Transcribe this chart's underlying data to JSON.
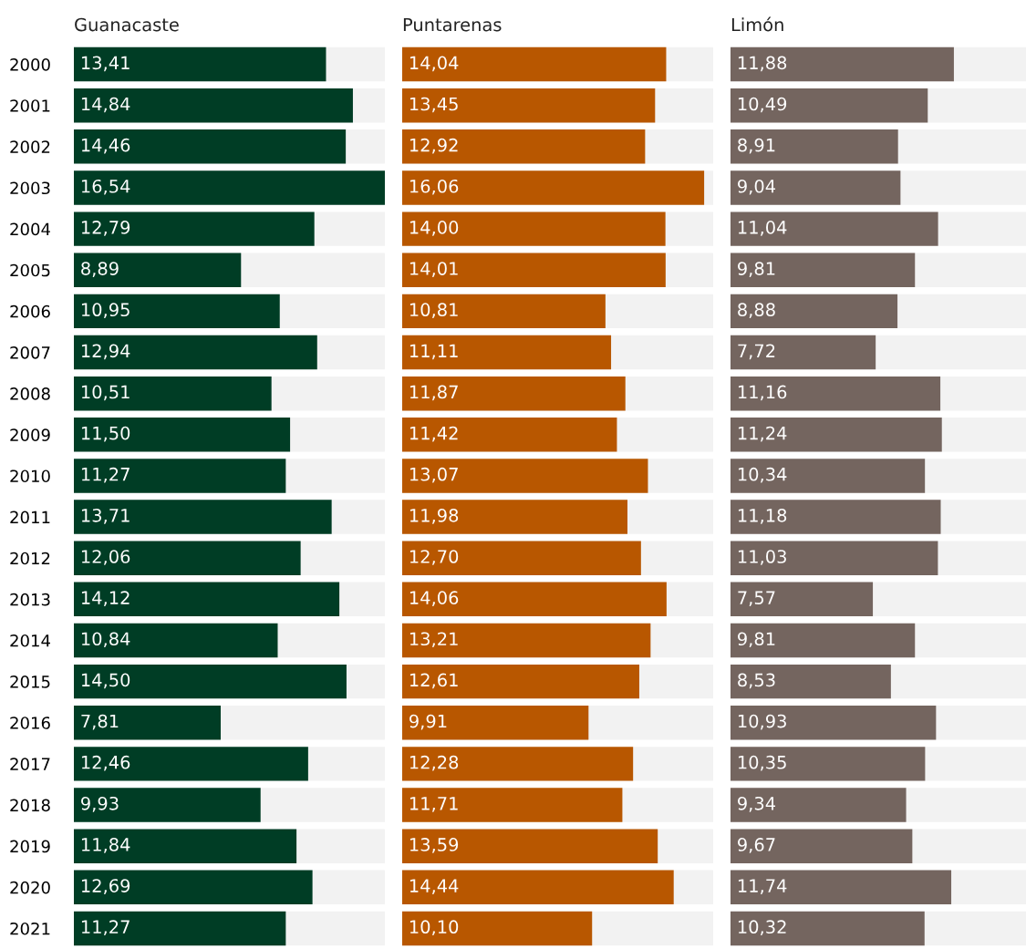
{
  "chart_data": [
    {
      "type": "bar",
      "orientation": "horizontal",
      "title": "Guanacaste",
      "categories": [
        "2000",
        "2001",
        "2002",
        "2003",
        "2004",
        "2005",
        "2006",
        "2007",
        "2008",
        "2009",
        "2010",
        "2011",
        "2012",
        "2013",
        "2014",
        "2015",
        "2016",
        "2017",
        "2018",
        "2019",
        "2020",
        "2021"
      ],
      "values": [
        13.41,
        14.84,
        14.46,
        16.54,
        12.79,
        8.89,
        10.95,
        12.94,
        10.51,
        11.5,
        11.27,
        13.71,
        12.06,
        14.12,
        10.84,
        14.5,
        7.81,
        12.46,
        9.93,
        11.84,
        12.69,
        11.27
      ],
      "value_labels": [
        "13,41",
        "14,84",
        "14,46",
        "16,54",
        "12,79",
        "8,89",
        "10,95",
        "12,94",
        "10,51",
        "11,50",
        "11,27",
        "13,71",
        "12,06",
        "14,12",
        "10,84",
        "14,50",
        "7,81",
        "12,46",
        "9,93",
        "11,84",
        "12,69",
        "11,27"
      ],
      "color": "#003d25",
      "xlim": [
        0,
        16.54
      ],
      "tick_labels": "y"
    },
    {
      "type": "bar",
      "orientation": "horizontal",
      "title": "Puntarenas",
      "categories": [
        "2000",
        "2001",
        "2002",
        "2003",
        "2004",
        "2005",
        "2006",
        "2007",
        "2008",
        "2009",
        "2010",
        "2011",
        "2012",
        "2013",
        "2014",
        "2015",
        "2016",
        "2017",
        "2018",
        "2019",
        "2020",
        "2021"
      ],
      "values": [
        14.04,
        13.45,
        12.92,
        16.06,
        14.0,
        14.01,
        10.81,
        11.11,
        11.87,
        11.42,
        13.07,
        11.98,
        12.7,
        14.06,
        13.21,
        12.61,
        9.91,
        12.28,
        11.71,
        13.59,
        14.44,
        10.1
      ],
      "value_labels": [
        "14,04",
        "13,45",
        "12,92",
        "16,06",
        "14,00",
        "14,01",
        "10,81",
        "11,11",
        "11,87",
        "11,42",
        "13,07",
        "11,98",
        "12,70",
        "14,06",
        "13,21",
        "12,61",
        "9,91",
        "12,28",
        "11,71",
        "13,59",
        "14,44",
        "10,10"
      ],
      "color": "#b85700",
      "xlim": [
        0,
        16.54
      ],
      "tick_labels": false
    },
    {
      "type": "bar",
      "orientation": "horizontal",
      "title": "Limón",
      "categories": [
        "2000",
        "2001",
        "2002",
        "2003",
        "2004",
        "2005",
        "2006",
        "2007",
        "2008",
        "2009",
        "2010",
        "2011",
        "2012",
        "2013",
        "2014",
        "2015",
        "2016",
        "2017",
        "2018",
        "2019",
        "2020",
        "2021"
      ],
      "values": [
        11.88,
        10.49,
        8.91,
        9.04,
        11.04,
        9.81,
        8.88,
        7.72,
        11.16,
        11.24,
        10.34,
        11.18,
        11.03,
        7.57,
        9.81,
        8.53,
        10.93,
        10.35,
        9.34,
        9.67,
        11.74,
        10.32
      ],
      "value_labels": [
        "11,88",
        "10,49",
        "8,91",
        "9,04",
        "11,04",
        "9,81",
        "8,88",
        "7,72",
        "11,16",
        "11,24",
        "10,34",
        "11,18",
        "11,03",
        "7,57",
        "9,81",
        "8,53",
        "10,93",
        "10,35",
        "9,34",
        "9,67",
        "11,74",
        "10,32"
      ],
      "color": "#74655f",
      "xlim": [
        0,
        16.54
      ],
      "tick_labels": false
    }
  ]
}
